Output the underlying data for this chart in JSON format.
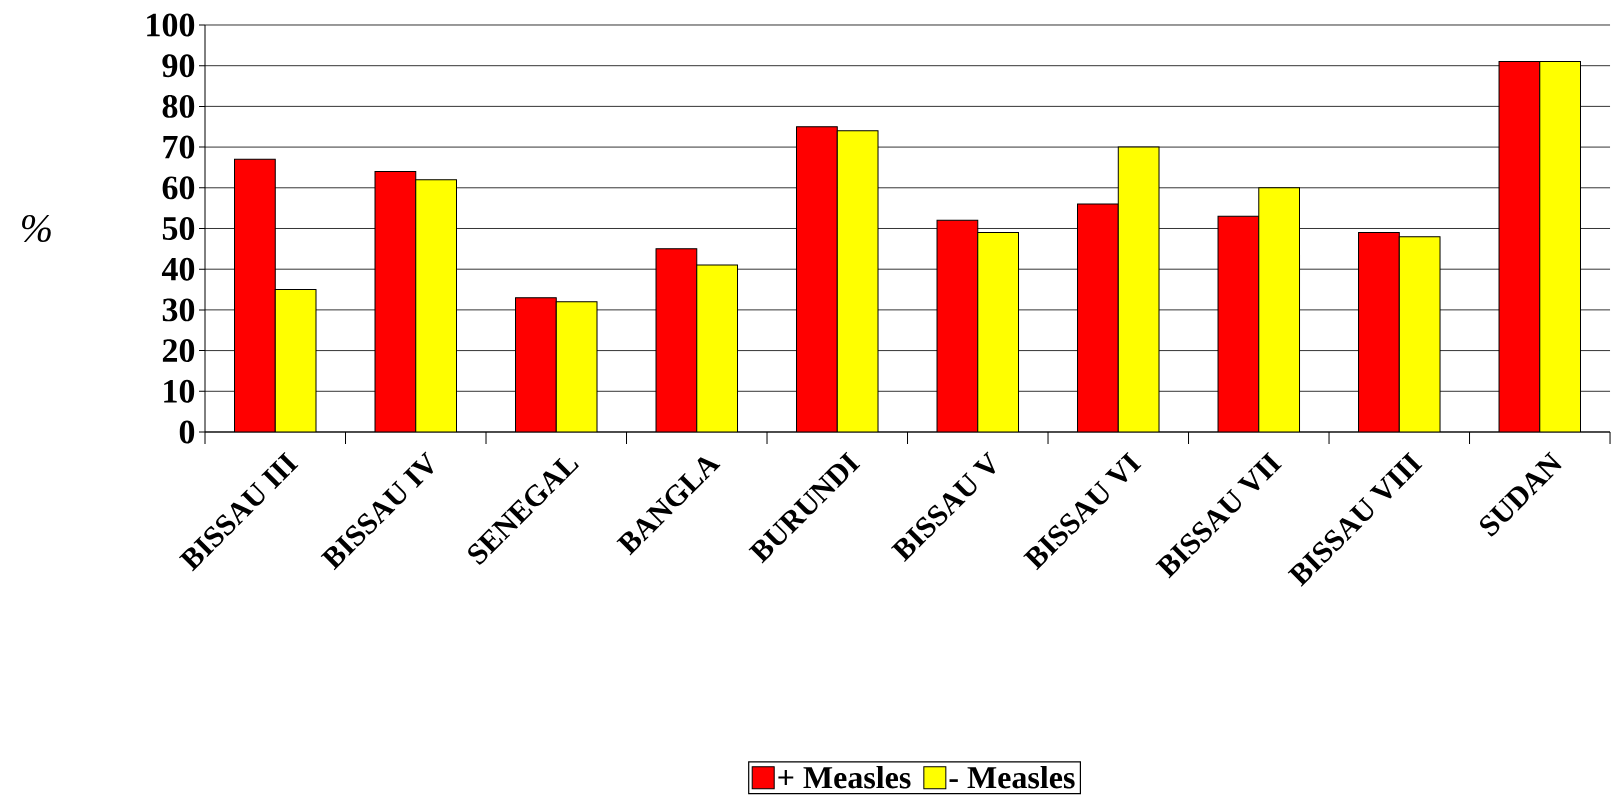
{
  "chart_data": {
    "type": "bar",
    "ylabel": "%",
    "categories": [
      "BISSAU III",
      "BISSAU IV",
      "SENEGAL",
      "BANGLA",
      "BURUNDI",
      "BISSAU V",
      "BISSAU VI",
      "BISSAU VII",
      "BISSAU VIII",
      "SUDAN"
    ],
    "series": [
      {
        "name": "+ Measles",
        "color": "#ff0000",
        "values": [
          67,
          64,
          33,
          45,
          75,
          52,
          56,
          53,
          49,
          91
        ]
      },
      {
        "name": "- Measles",
        "color": "#ffff00",
        "values": [
          35,
          62,
          32,
          41,
          74,
          49,
          70,
          60,
          48,
          91
        ]
      }
    ],
    "ylim": [
      0,
      100
    ],
    "yticks": [
      0,
      10,
      20,
      30,
      40,
      50,
      60,
      70,
      80,
      90,
      100
    ],
    "grid": "y",
    "legend": "bottom"
  }
}
